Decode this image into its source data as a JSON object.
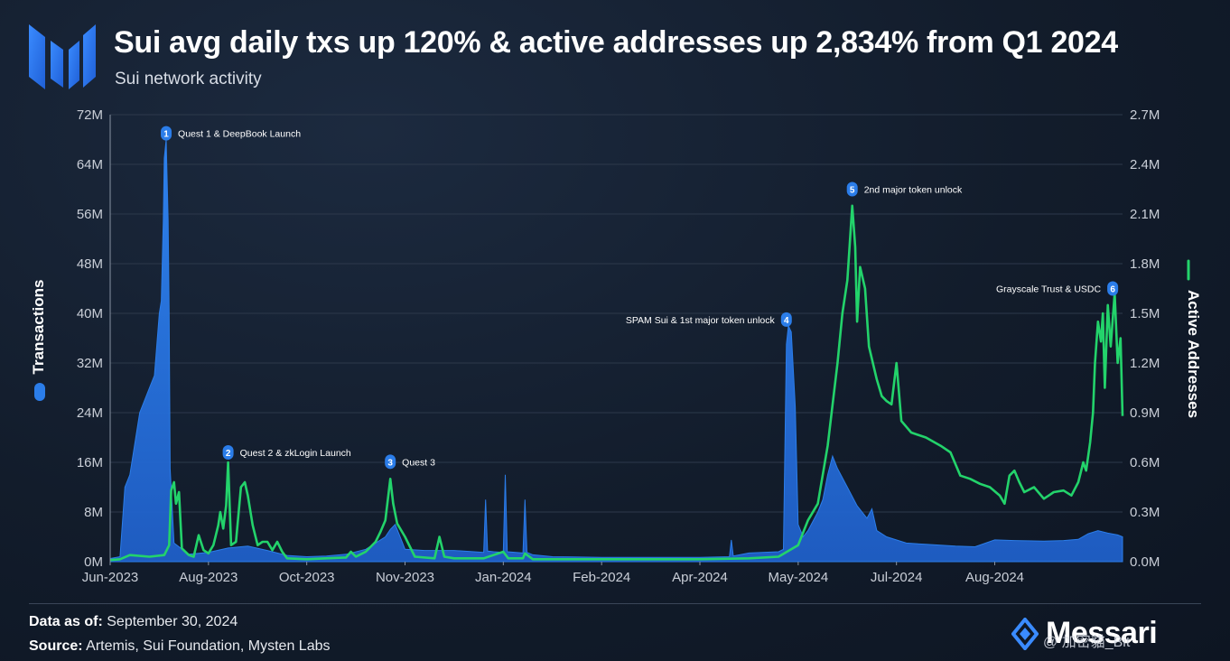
{
  "header": {
    "title": "Sui avg daily txs up 120% & active addresses up 2,834% from Q1 2024",
    "subtitle": "Sui network activity"
  },
  "footer": {
    "data_as_of_label": "Data as of:",
    "data_as_of_value": "September 30, 2024",
    "source_label": "Source:",
    "source_value": "Artemis, Sui Foundation, Mysten Labs",
    "brand": "Messari",
    "watermark": "@ 加密貓_Bit"
  },
  "colors": {
    "background": "#121c2b",
    "transactions": "#2b7de9",
    "active_addresses": "#23d36b",
    "annotation_badge": "#2b7de9",
    "grid": "#2d394b"
  },
  "chart_data": {
    "type": "area",
    "title": "Sui network activity",
    "x_ticks": [
      "Jun-2023",
      "Aug-2023",
      "Oct-2023",
      "Nov-2023",
      "Jan-2024",
      "Feb-2024",
      "Apr-2024",
      "May-2024",
      "Jul-2024",
      "Aug-2024"
    ],
    "y_left": {
      "label": "Transactions",
      "ylim": [
        0,
        72000000
      ],
      "ticks": [
        "0M",
        "8M",
        "16M",
        "24M",
        "32M",
        "40M",
        "48M",
        "56M",
        "64M",
        "72M"
      ]
    },
    "y_right": {
      "label": "Active Addresses",
      "ylim": [
        0,
        2700000
      ],
      "ticks": [
        "0.0M",
        "0.3M",
        "0.6M",
        "0.9M",
        "1.2M",
        "1.5M",
        "1.8M",
        "2.1M",
        "2.4M",
        "2.7M"
      ]
    },
    "x_range": [
      0,
      10.3
    ],
    "series": [
      {
        "name": "Transactions",
        "axis": "left",
        "style": "area",
        "points": [
          [
            0,
            0.5
          ],
          [
            0.1,
            0.8
          ],
          [
            0.15,
            12
          ],
          [
            0.2,
            14
          ],
          [
            0.3,
            24
          ],
          [
            0.4,
            28
          ],
          [
            0.45,
            30
          ],
          [
            0.5,
            40
          ],
          [
            0.52,
            42
          ],
          [
            0.54,
            55
          ],
          [
            0.55,
            65
          ],
          [
            0.57,
            68
          ],
          [
            0.59,
            55
          ],
          [
            0.6,
            40
          ],
          [
            0.61,
            15
          ],
          [
            0.65,
            3
          ],
          [
            0.8,
            1.2
          ],
          [
            1.0,
            1.5
          ],
          [
            1.2,
            2.2
          ],
          [
            1.4,
            2.5
          ],
          [
            1.6,
            1.8
          ],
          [
            1.8,
            1
          ],
          [
            2.0,
            0.8
          ],
          [
            2.2,
            0.9
          ],
          [
            2.4,
            1.2
          ],
          [
            2.6,
            2
          ],
          [
            2.8,
            4
          ],
          [
            2.85,
            5.2
          ],
          [
            2.9,
            6
          ],
          [
            2.95,
            4
          ],
          [
            3.0,
            2
          ],
          [
            3.2,
            1.8
          ],
          [
            3.5,
            1.8
          ],
          [
            3.7,
            1.6
          ],
          [
            3.8,
            1.5
          ],
          [
            3.82,
            10
          ],
          [
            3.84,
            1.7
          ],
          [
            3.9,
            1.6
          ],
          [
            4.0,
            1.5
          ],
          [
            4.02,
            14
          ],
          [
            4.04,
            1.6
          ],
          [
            4.2,
            1.4
          ],
          [
            4.22,
            10
          ],
          [
            4.24,
            1.5
          ],
          [
            4.3,
            1.1
          ],
          [
            4.5,
            0.8
          ],
          [
            5.0,
            0.7
          ],
          [
            6.0,
            0.7
          ],
          [
            6.3,
            0.8
          ],
          [
            6.32,
            3.5
          ],
          [
            6.34,
            0.9
          ],
          [
            6.5,
            1.4
          ],
          [
            6.8,
            1.6
          ],
          [
            6.85,
            2
          ],
          [
            6.88,
            35
          ],
          [
            6.9,
            38
          ],
          [
            6.93,
            37
          ],
          [
            6.97,
            25
          ],
          [
            7.0,
            6
          ],
          [
            7.05,
            4
          ],
          [
            7.1,
            5
          ],
          [
            7.2,
            8
          ],
          [
            7.25,
            10
          ],
          [
            7.3,
            14
          ],
          [
            7.35,
            17
          ],
          [
            7.4,
            15
          ],
          [
            7.5,
            12
          ],
          [
            7.6,
            9
          ],
          [
            7.7,
            7
          ],
          [
            7.75,
            8.5
          ],
          [
            7.8,
            5
          ],
          [
            7.9,
            4
          ],
          [
            8.1,
            3
          ],
          [
            8.3,
            2.8
          ],
          [
            8.6,
            2.5
          ],
          [
            8.8,
            2.4
          ],
          [
            9.0,
            3.5
          ],
          [
            9.2,
            3.4
          ],
          [
            9.5,
            3.3
          ],
          [
            9.7,
            3.4
          ],
          [
            9.85,
            3.6
          ],
          [
            9.95,
            4.5
          ],
          [
            10.05,
            5
          ],
          [
            10.15,
            4.6
          ],
          [
            10.25,
            4.3
          ],
          [
            10.3,
            4
          ]
        ]
      },
      {
        "name": "Active Addresses",
        "axis": "right",
        "style": "line",
        "points": [
          [
            0,
            0.01
          ],
          [
            0.1,
            0.015
          ],
          [
            0.2,
            0.04
          ],
          [
            0.4,
            0.03
          ],
          [
            0.55,
            0.04
          ],
          [
            0.6,
            0.1
          ],
          [
            0.62,
            0.43
          ],
          [
            0.65,
            0.48
          ],
          [
            0.67,
            0.35
          ],
          [
            0.7,
            0.42
          ],
          [
            0.73,
            0.08
          ],
          [
            0.8,
            0.04
          ],
          [
            0.85,
            0.03
          ],
          [
            0.9,
            0.16
          ],
          [
            0.95,
            0.07
          ],
          [
            1.0,
            0.05
          ],
          [
            1.05,
            0.1
          ],
          [
            1.1,
            0.22
          ],
          [
            1.12,
            0.3
          ],
          [
            1.15,
            0.2
          ],
          [
            1.18,
            0.34
          ],
          [
            1.2,
            0.6
          ],
          [
            1.23,
            0.1
          ],
          [
            1.28,
            0.12
          ],
          [
            1.33,
            0.45
          ],
          [
            1.37,
            0.48
          ],
          [
            1.4,
            0.4
          ],
          [
            1.45,
            0.22
          ],
          [
            1.5,
            0.1
          ],
          [
            1.55,
            0.12
          ],
          [
            1.6,
            0.12
          ],
          [
            1.65,
            0.07
          ],
          [
            1.7,
            0.12
          ],
          [
            1.75,
            0.06
          ],
          [
            1.8,
            0.02
          ],
          [
            2.0,
            0.015
          ],
          [
            2.2,
            0.02
          ],
          [
            2.4,
            0.025
          ],
          [
            2.45,
            0.06
          ],
          [
            2.5,
            0.03
          ],
          [
            2.6,
            0.06
          ],
          [
            2.7,
            0.12
          ],
          [
            2.75,
            0.18
          ],
          [
            2.8,
            0.25
          ],
          [
            2.85,
            0.5
          ],
          [
            2.88,
            0.35
          ],
          [
            2.92,
            0.23
          ],
          [
            3.0,
            0.15
          ],
          [
            3.1,
            0.03
          ],
          [
            3.3,
            0.02
          ],
          [
            3.35,
            0.15
          ],
          [
            3.4,
            0.03
          ],
          [
            3.5,
            0.02
          ],
          [
            3.6,
            0.02
          ],
          [
            3.8,
            0.02
          ],
          [
            4.0,
            0.06
          ],
          [
            4.05,
            0.02
          ],
          [
            4.2,
            0.02
          ],
          [
            4.22,
            0.05
          ],
          [
            4.3,
            0.015
          ],
          [
            4.6,
            0.015
          ],
          [
            5.0,
            0.015
          ],
          [
            6.0,
            0.015
          ],
          [
            6.5,
            0.02
          ],
          [
            6.8,
            0.03
          ],
          [
            7.0,
            0.1
          ],
          [
            7.1,
            0.25
          ],
          [
            7.2,
            0.35
          ],
          [
            7.3,
            0.7
          ],
          [
            7.4,
            1.2
          ],
          [
            7.45,
            1.5
          ],
          [
            7.5,
            1.7
          ],
          [
            7.55,
            2.15
          ],
          [
            7.58,
            1.9
          ],
          [
            7.6,
            1.45
          ],
          [
            7.63,
            1.78
          ],
          [
            7.68,
            1.65
          ],
          [
            7.72,
            1.3
          ],
          [
            7.8,
            1.1
          ],
          [
            7.85,
            1.0
          ],
          [
            7.9,
            0.97
          ],
          [
            7.95,
            0.95
          ],
          [
            8.0,
            1.2
          ],
          [
            8.05,
            0.85
          ],
          [
            8.15,
            0.78
          ],
          [
            8.3,
            0.75
          ],
          [
            8.45,
            0.7
          ],
          [
            8.55,
            0.66
          ],
          [
            8.65,
            0.52
          ],
          [
            8.75,
            0.5
          ],
          [
            8.85,
            0.47
          ],
          [
            8.95,
            0.45
          ],
          [
            9.05,
            0.4
          ],
          [
            9.1,
            0.35
          ],
          [
            9.15,
            0.52
          ],
          [
            9.2,
            0.55
          ],
          [
            9.25,
            0.48
          ],
          [
            9.3,
            0.42
          ],
          [
            9.4,
            0.45
          ],
          [
            9.5,
            0.38
          ],
          [
            9.55,
            0.4
          ],
          [
            9.6,
            0.42
          ],
          [
            9.7,
            0.43
          ],
          [
            9.78,
            0.4
          ],
          [
            9.85,
            0.48
          ],
          [
            9.9,
            0.6
          ],
          [
            9.93,
            0.55
          ],
          [
            9.97,
            0.72
          ],
          [
            10.0,
            0.9
          ],
          [
            10.02,
            1.2
          ],
          [
            10.05,
            1.45
          ],
          [
            10.08,
            1.33
          ],
          [
            10.1,
            1.5
          ],
          [
            10.12,
            1.05
          ],
          [
            10.15,
            1.55
          ],
          [
            10.18,
            1.3
          ],
          [
            10.22,
            1.62
          ],
          [
            10.25,
            1.2
          ],
          [
            10.28,
            1.35
          ],
          [
            10.3,
            0.88
          ]
        ]
      }
    ],
    "annotations": [
      {
        "num": "1",
        "label": "Quest 1 & DeepBook Launch",
        "x": 0.57,
        "y": 69,
        "label_side": "right"
      },
      {
        "num": "2",
        "label": "Quest 2 & zkLogin Launch",
        "x": 1.2,
        "y": 17.6,
        "label_side": "right"
      },
      {
        "num": "3",
        "label": "Quest 3",
        "x": 2.85,
        "y": 16.1,
        "label_side": "right"
      },
      {
        "num": "4",
        "label": "SPAM Sui & 1st major token unlock",
        "x": 6.88,
        "y": 39,
        "label_side": "left"
      },
      {
        "num": "5",
        "label": "2nd major token unlock",
        "x": 7.55,
        "y": 60,
        "label_side": "right"
      },
      {
        "num": "6",
        "label": "Grayscale Trust & USDC",
        "x": 10.2,
        "y": 44,
        "label_side": "left"
      }
    ]
  }
}
